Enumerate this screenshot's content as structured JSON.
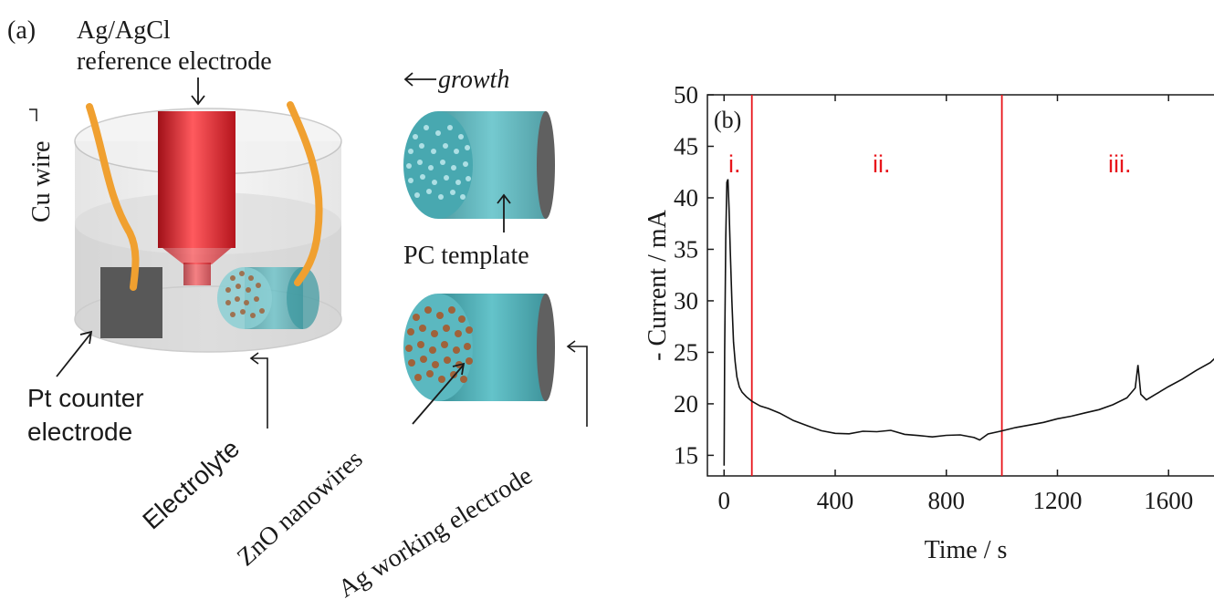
{
  "panel_a": {
    "label": "(a)",
    "reference_electrode_line1": "Ag/AgCl",
    "reference_electrode_line2": "reference electrode",
    "cu_wire": "Cu wire",
    "growth": "growth",
    "pc_template": "PC template",
    "pt_counter_line1": "Pt counter",
    "pt_counter_line2": "electrode",
    "electrolyte": "Electrolyte",
    "zno_nanowires": "ZnO nanowires",
    "ag_working": "Ag working electrode",
    "colors": {
      "reference_red": "#d8242c",
      "wire_orange": "#f0a030",
      "template_teal": "#4fb0b8",
      "nanowire_brown": "#a0623a",
      "counter_gray": "#555555"
    }
  },
  "panel_b": {
    "label": "(b)",
    "region_labels": [
      "i.",
      "ii.",
      "iii."
    ],
    "region_color": "#e8151b"
  },
  "chart_data": {
    "type": "line",
    "xlabel": "Time / s",
    "ylabel": "- Current / mA",
    "xlim": [
      -60,
      1780
    ],
    "ylim": [
      13,
      50
    ],
    "xticks": [
      0,
      400,
      800,
      1200,
      1600
    ],
    "yticks": [
      15,
      20,
      25,
      30,
      35,
      40,
      45,
      50
    ],
    "region_boundaries": [
      100,
      1000
    ],
    "series": [
      {
        "x": [
          0,
          2,
          6,
          10,
          14,
          18,
          22,
          28,
          34,
          40,
          46,
          55,
          65,
          80,
          100,
          130,
          160,
          200,
          250,
          300,
          350,
          400,
          450,
          500,
          550,
          600,
          650,
          700,
          750,
          800,
          850,
          900,
          920,
          950,
          1000,
          1050,
          1100,
          1150,
          1200,
          1250,
          1300,
          1350,
          1400,
          1450,
          1480,
          1490,
          1500,
          1520,
          1550,
          1600,
          1650,
          1700,
          1750,
          1780
        ],
        "y": [
          14,
          25,
          36,
          41.5,
          41.8,
          39,
          35,
          30,
          26,
          24,
          22.5,
          21.5,
          21,
          20.6,
          20.2,
          19.8,
          19.6,
          19.2,
          18.5,
          18,
          17.5,
          17.2,
          17.1,
          17.3,
          17.2,
          17.3,
          16.9,
          16.8,
          16.7,
          16.9,
          17,
          16.8,
          16.6,
          17.2,
          17.5,
          17.8,
          18,
          18.2,
          18.5,
          18.7,
          19,
          19.3,
          19.8,
          20.5,
          21.5,
          23.8,
          21,
          20.5,
          21,
          21.8,
          22.5,
          23.3,
          24,
          24.7
        ]
      }
    ]
  }
}
